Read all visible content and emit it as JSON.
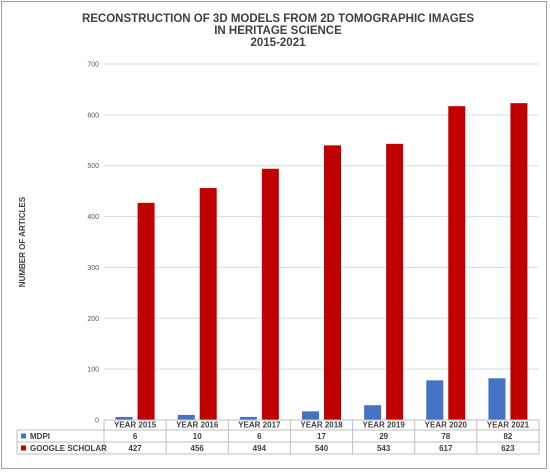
{
  "chart_data": {
    "type": "bar",
    "title": [
      "RECONSTRUCTION OF 3D MODELS FROM 2D TOMOGRAPHIC IMAGES",
      "IN HERITAGE SCIENCE",
      "2015-2021"
    ],
    "ylabel": "NUMBER OF ARTICLES",
    "xlabel": "",
    "ylim": [
      0,
      700
    ],
    "yticks": [
      0,
      100,
      200,
      300,
      400,
      500,
      600,
      700
    ],
    "grid": true,
    "categories": [
      "YEAR 2015",
      "YEAR 2016",
      "YEAR 2017",
      "YEAR 2018",
      "YEAR 2019",
      "YEAR 2020",
      "YEAR 2021"
    ],
    "series": [
      {
        "name": "MDPI",
        "values": [
          6,
          10,
          6,
          17,
          29,
          78,
          82
        ],
        "color": "#4472c4"
      },
      {
        "name": "GOOGLE SCHOLAR",
        "values": [
          427,
          456,
          494,
          540,
          543,
          617,
          623
        ],
        "color": "#c00000"
      }
    ],
    "legend": "data-table-bottom"
  }
}
